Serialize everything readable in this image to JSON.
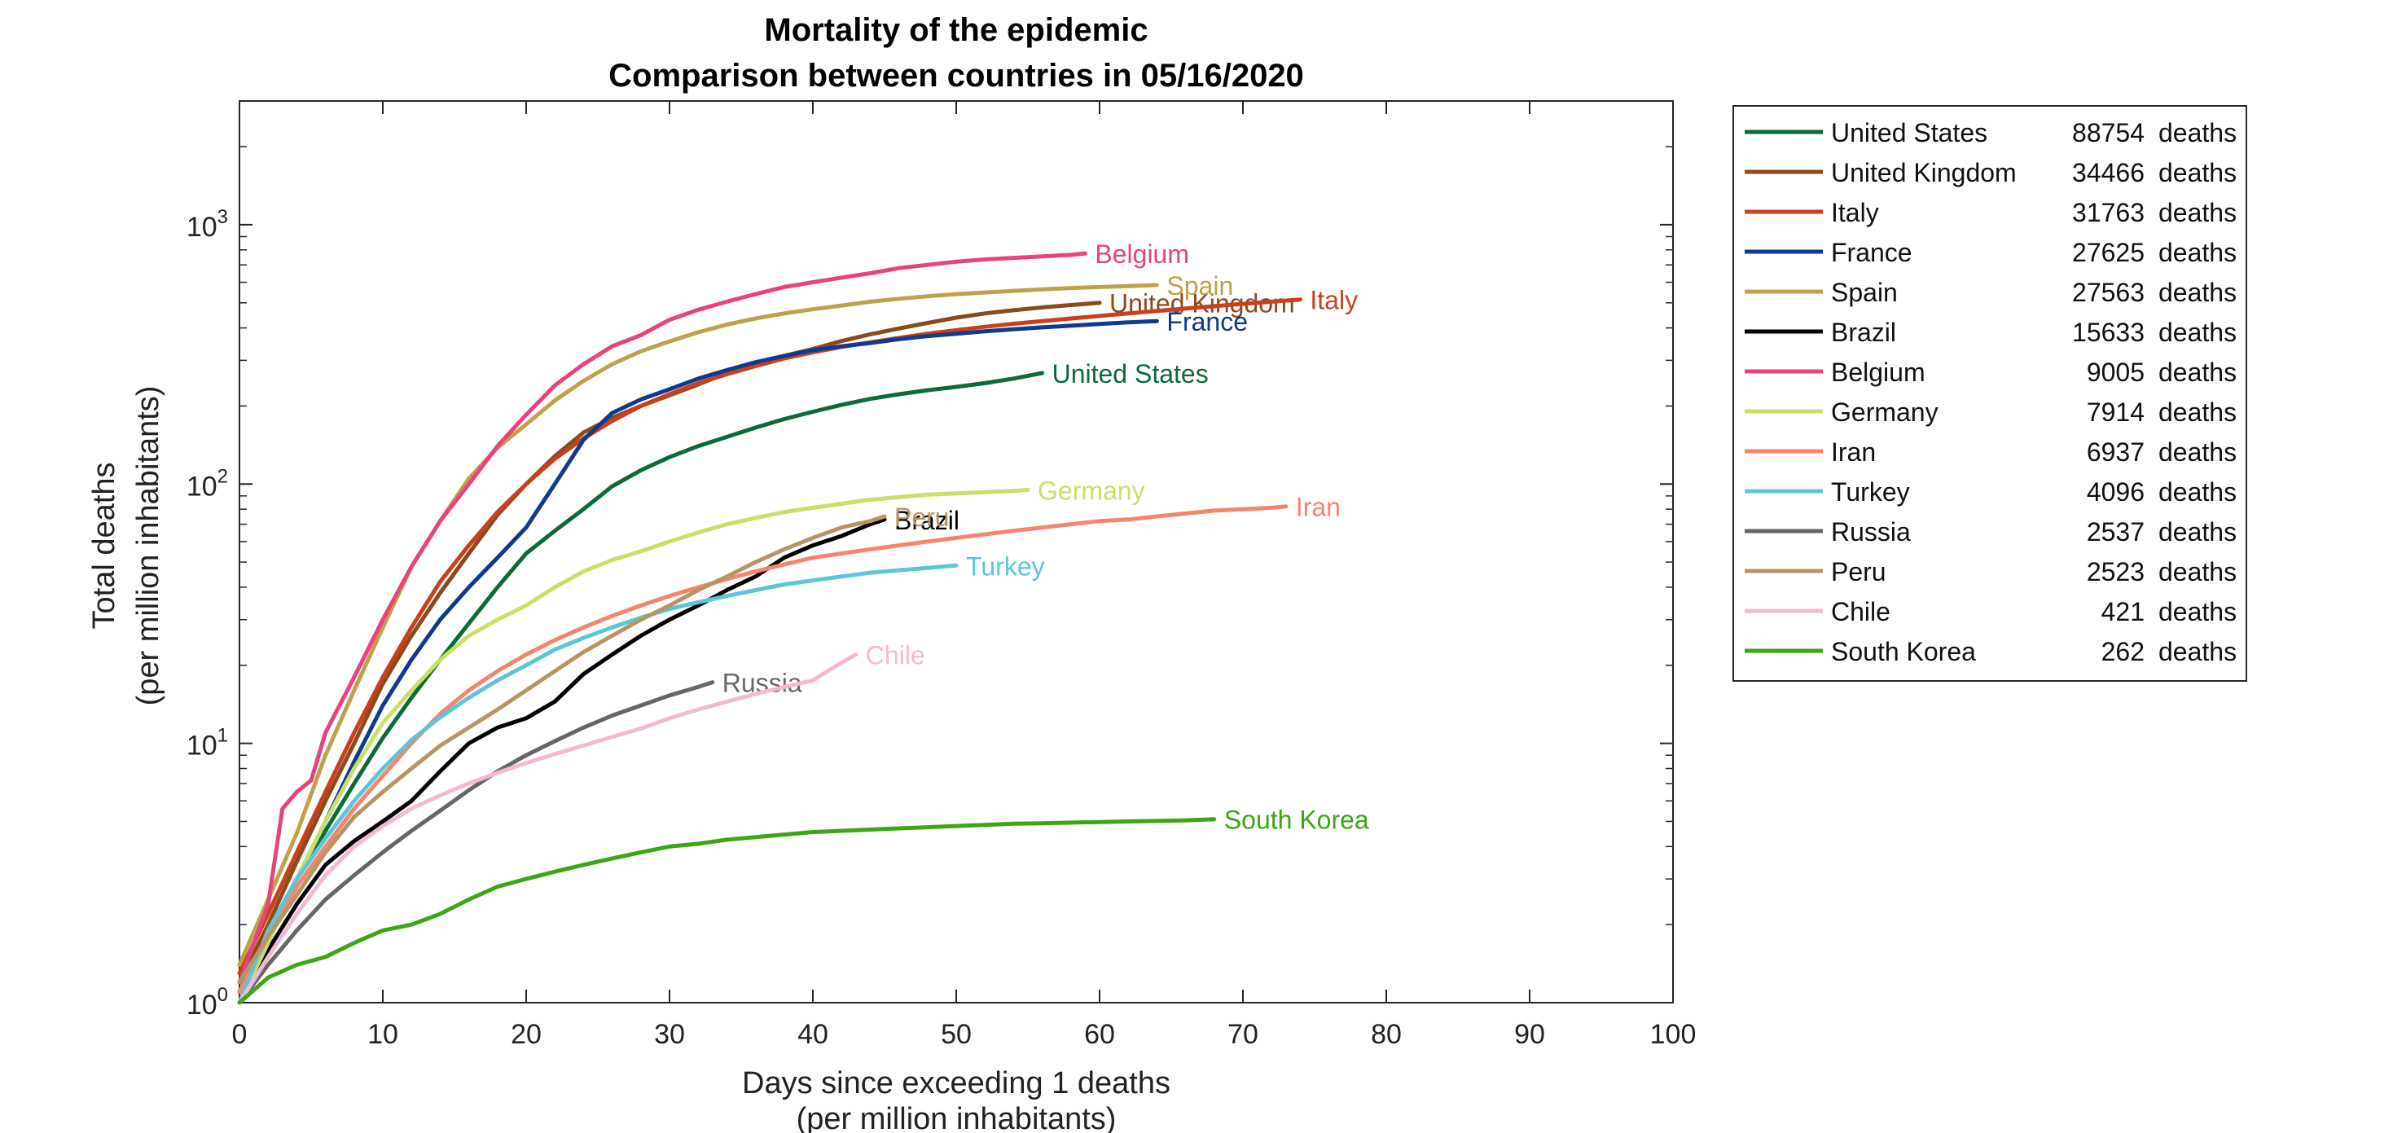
{
  "chart_data": {
    "type": "line",
    "title": [
      "Mortality of the epidemic",
      "Comparison between countries in 05/16/2020"
    ],
    "xlabel": [
      "Days since exceeding 1 deaths",
      "(per million inhabitants)"
    ],
    "ylabel": [
      "Total deaths",
      "(per million inhabitants)"
    ],
    "xlim": [
      0,
      100
    ],
    "ylim": [
      1,
      3000
    ],
    "yscale": "log",
    "xticks": [
      0,
      10,
      20,
      30,
      40,
      50,
      60,
      70,
      80,
      90,
      100
    ],
    "yticks": [
      {
        "value": 1,
        "base": "10",
        "exp": "0"
      },
      {
        "value": 10,
        "base": "10",
        "exp": "1"
      },
      {
        "value": 100,
        "base": "10",
        "exp": "2"
      },
      {
        "value": 1000,
        "base": "10",
        "exp": "3"
      }
    ],
    "grid": false,
    "legend_position": "outside-right",
    "legend_unit": "deaths",
    "series": [
      {
        "name": "United States",
        "deaths": "88754",
        "color": "#0b6b3a",
        "x": [
          0,
          2,
          4,
          6,
          8,
          10,
          12,
          14,
          16,
          18,
          20,
          22,
          24,
          26,
          28,
          30,
          32,
          34,
          36,
          38,
          40,
          42,
          44,
          46,
          48,
          50,
          52,
          54,
          56
        ],
        "y": [
          1.1,
          1.9,
          3.0,
          4.6,
          7.0,
          10.5,
          15,
          21,
          29,
          40,
          54,
          66,
          80,
          98,
          113,
          127,
          140,
          152,
          165,
          178,
          190,
          202,
          213,
          222,
          230,
          237,
          245,
          255,
          268
        ]
      },
      {
        "name": "United Kingdom",
        "deaths": "34466",
        "color": "#8b4a1c",
        "x": [
          0,
          2,
          4,
          6,
          8,
          10,
          12,
          14,
          16,
          18,
          20,
          22,
          24,
          26,
          28,
          30,
          32,
          34,
          36,
          38,
          40,
          42,
          44,
          46,
          48,
          50,
          52,
          54,
          56,
          58,
          60
        ],
        "y": [
          1.2,
          2.0,
          3.5,
          6.0,
          10,
          17,
          26,
          38,
          54,
          76,
          100,
          128,
          158,
          180,
          200,
          220,
          242,
          268,
          290,
          312,
          332,
          356,
          378,
          398,
          418,
          438,
          455,
          468,
          480,
          490,
          500
        ]
      },
      {
        "name": "Italy",
        "deaths": "31763",
        "color": "#c8401c",
        "x": [
          0,
          2,
          4,
          6,
          8,
          10,
          12,
          14,
          16,
          18,
          20,
          22,
          24,
          26,
          28,
          30,
          32,
          34,
          36,
          38,
          40,
          42,
          44,
          46,
          48,
          50,
          52,
          54,
          56,
          58,
          60,
          62,
          64,
          66,
          68,
          70,
          72,
          74
        ],
        "y": [
          1.3,
          2.2,
          3.8,
          6.5,
          11,
          18,
          28,
          42,
          58,
          78,
          100,
          125,
          150,
          175,
          200,
          222,
          245,
          265,
          285,
          305,
          322,
          338,
          352,
          366,
          380,
          392,
          404,
          415,
          425,
          435,
          445,
          455,
          465,
          475,
          485,
          495,
          505,
          515
        ]
      },
      {
        "name": "France",
        "deaths": "27625",
        "color": "#0f3a8e",
        "x": [
          0,
          2,
          4,
          6,
          8,
          10,
          12,
          14,
          16,
          18,
          20,
          22,
          24,
          26,
          28,
          30,
          32,
          34,
          36,
          38,
          40,
          42,
          44,
          46,
          48,
          50,
          52,
          54,
          56,
          58,
          60,
          62,
          64
        ],
        "y": [
          1.1,
          1.8,
          3.0,
          5.0,
          8.5,
          14,
          21,
          30,
          40,
          52,
          68,
          100,
          148,
          188,
          212,
          232,
          255,
          275,
          295,
          312,
          328,
          340,
          350,
          362,
          372,
          380,
          388,
          395,
          402,
          408,
          414,
          420,
          425
        ]
      },
      {
        "name": "Spain",
        "deaths": "27563",
        "color": "#bfa14a",
        "x": [
          0,
          2,
          4,
          6,
          8,
          10,
          12,
          14,
          16,
          18,
          20,
          22,
          24,
          26,
          28,
          30,
          32,
          34,
          36,
          38,
          40,
          42,
          44,
          46,
          48,
          50,
          52,
          54,
          56,
          58,
          60,
          62,
          64
        ],
        "y": [
          1.4,
          2.5,
          4.5,
          9,
          16,
          28,
          48,
          72,
          105,
          138,
          170,
          210,
          250,
          290,
          325,
          355,
          385,
          412,
          435,
          455,
          472,
          488,
          505,
          518,
          530,
          540,
          548,
          556,
          563,
          570,
          575,
          580,
          585
        ]
      },
      {
        "name": "Brazil",
        "deaths": "15633",
        "color": "#000000",
        "x": [
          0,
          2,
          4,
          6,
          8,
          10,
          12,
          14,
          16,
          18,
          20,
          22,
          24,
          26,
          28,
          30,
          32,
          34,
          36,
          38,
          40,
          42,
          44,
          45
        ],
        "y": [
          1.0,
          1.6,
          2.4,
          3.4,
          4.2,
          5.0,
          6.0,
          7.8,
          10,
          11.5,
          12.5,
          14.5,
          18.5,
          22,
          26,
          30,
          34,
          39,
          44,
          52,
          58,
          63,
          70,
          73
        ]
      },
      {
        "name": "Belgium",
        "deaths": "9005",
        "color": "#e8447b",
        "x": [
          0,
          2,
          3,
          4,
          5,
          6,
          8,
          10,
          12,
          14,
          16,
          18,
          20,
          22,
          24,
          26,
          28,
          30,
          32,
          34,
          36,
          38,
          40,
          42,
          44,
          46,
          48,
          50,
          52,
          54,
          56,
          58,
          59
        ],
        "y": [
          1.2,
          2.4,
          5.6,
          6.5,
          7.2,
          11,
          18,
          30,
          48,
          72,
          100,
          140,
          185,
          240,
          290,
          340,
          375,
          430,
          470,
          505,
          540,
          575,
          600,
          625,
          650,
          680,
          700,
          720,
          735,
          745,
          755,
          765,
          775
        ]
      },
      {
        "name": "Germany",
        "deaths": "7914",
        "color": "#c7e067",
        "x": [
          0,
          2,
          4,
          6,
          8,
          10,
          12,
          14,
          16,
          18,
          20,
          22,
          24,
          26,
          28,
          30,
          32,
          34,
          36,
          38,
          40,
          42,
          44,
          46,
          48,
          50,
          52,
          54,
          55
        ],
        "y": [
          1.0,
          1.7,
          3.0,
          5.0,
          8.0,
          12,
          16,
          21,
          26,
          30,
          34,
          40,
          46,
          51,
          55,
          60,
          65,
          70,
          74,
          78,
          81,
          84,
          87,
          89,
          91,
          92,
          93,
          94,
          95
        ]
      },
      {
        "name": "Iran",
        "deaths": "6937",
        "color": "#f58570",
        "x": [
          0,
          2,
          4,
          6,
          8,
          10,
          12,
          14,
          16,
          18,
          20,
          22,
          24,
          26,
          28,
          30,
          32,
          34,
          36,
          38,
          40,
          42,
          44,
          46,
          48,
          50,
          52,
          54,
          56,
          58,
          60,
          62,
          64,
          66,
          68,
          70,
          72,
          73
        ],
        "y": [
          1.1,
          1.8,
          2.8,
          4.0,
          5.6,
          7.5,
          10,
          13,
          16,
          19,
          22,
          25,
          28,
          31,
          34,
          37,
          40,
          43,
          46,
          49,
          52,
          54,
          56,
          58,
          60,
          62,
          64,
          66,
          68,
          70,
          72,
          73,
          75,
          77,
          79,
          80,
          81,
          82
        ]
      },
      {
        "name": "Turkey",
        "deaths": "4096",
        "color": "#5cc6d6",
        "x": [
          0,
          2,
          4,
          6,
          8,
          10,
          12,
          14,
          16,
          18,
          20,
          22,
          24,
          26,
          28,
          30,
          32,
          34,
          36,
          38,
          40,
          42,
          44,
          46,
          48,
          50
        ],
        "y": [
          1.0,
          1.9,
          3.0,
          4.3,
          6.0,
          8.0,
          10.3,
          12.6,
          15,
          17.5,
          20,
          23,
          25.5,
          28,
          30.5,
          33,
          35,
          37,
          39,
          41,
          42.5,
          44,
          45.5,
          46.5,
          47.5,
          48.5
        ]
      },
      {
        "name": "Russia",
        "deaths": "2537",
        "color": "#666666",
        "x": [
          0,
          2,
          4,
          6,
          8,
          10,
          12,
          14,
          16,
          18,
          20,
          22,
          24,
          26,
          28,
          30,
          32,
          33
        ],
        "y": [
          1.0,
          1.4,
          1.9,
          2.5,
          3.1,
          3.8,
          4.6,
          5.5,
          6.6,
          7.8,
          9.0,
          10.2,
          11.5,
          12.8,
          14,
          15.3,
          16.5,
          17.2
        ]
      },
      {
        "name": "Peru",
        "deaths": "2523",
        "color": "#b89464",
        "x": [
          0,
          2,
          4,
          6,
          8,
          10,
          12,
          14,
          16,
          18,
          20,
          22,
          24,
          26,
          28,
          30,
          32,
          34,
          36,
          38,
          40,
          42,
          44,
          45
        ],
        "y": [
          1.2,
          1.8,
          2.6,
          3.8,
          5.2,
          6.5,
          8.0,
          9.8,
          11.5,
          13.5,
          16,
          19,
          22.5,
          26,
          30,
          34,
          39,
          44,
          50,
          56,
          62,
          68,
          72,
          75
        ]
      },
      {
        "name": "Chile",
        "deaths": "421",
        "color": "#f4b8d4",
        "x": [
          0,
          2,
          4,
          6,
          8,
          10,
          12,
          14,
          16,
          18,
          20,
          22,
          24,
          26,
          28,
          30,
          32,
          34,
          36,
          38,
          40,
          42,
          43
        ],
        "y": [
          1.0,
          1.5,
          2.2,
          3.1,
          4.0,
          4.8,
          5.6,
          6.3,
          7.0,
          7.7,
          8.4,
          9.1,
          9.8,
          10.6,
          11.4,
          12.5,
          13.5,
          14.5,
          15.5,
          16.5,
          17.5,
          20.5,
          22
        ]
      },
      {
        "name": "South Korea",
        "deaths": "262",
        "color": "#3ca614",
        "x": [
          0,
          2,
          4,
          6,
          8,
          10,
          12,
          14,
          16,
          18,
          20,
          22,
          24,
          26,
          28,
          30,
          32,
          34,
          36,
          38,
          40,
          42,
          44,
          46,
          48,
          50,
          52,
          54,
          56,
          58,
          60,
          62,
          64,
          66,
          68
        ],
        "y": [
          1.0,
          1.25,
          1.4,
          1.5,
          1.7,
          1.9,
          2.0,
          2.2,
          2.5,
          2.8,
          3.0,
          3.2,
          3.4,
          3.6,
          3.8,
          4.0,
          4.1,
          4.25,
          4.35,
          4.45,
          4.55,
          4.6,
          4.65,
          4.7,
          4.75,
          4.8,
          4.85,
          4.9,
          4.92,
          4.95,
          4.97,
          5.0,
          5.02,
          5.05,
          5.1
        ]
      }
    ]
  }
}
